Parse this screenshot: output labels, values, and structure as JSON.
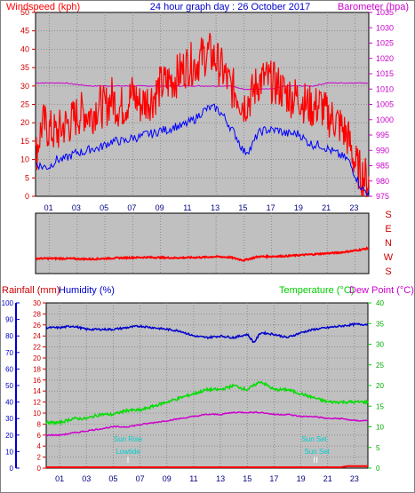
{
  "header": {
    "title": "24 hour graph day : 26 October 2017",
    "left_label": "Windspeed (kph)",
    "right_label": "Barometer (hpa)"
  },
  "colors": {
    "panel_bg": "#c0c0c0",
    "wind": "#ff0000",
    "gust": "#0000ff",
    "barometer": "#cc00cc",
    "direction": "#ff0000",
    "rain": "#ff0000",
    "humidity": "#0000cc",
    "temperature": "#00dd00",
    "dewpoint": "#cc00cc",
    "sun": "#00cccc"
  },
  "chart_data": [
    {
      "type": "line",
      "title": "24 hour graph day : 26 October 2017",
      "x_tick_labels": [
        "01",
        "03",
        "05",
        "07",
        "09",
        "11",
        "13",
        "15",
        "17",
        "19",
        "21",
        "23"
      ],
      "xlim": [
        0,
        24
      ],
      "y_left": {
        "label": "Windspeed (kph)",
        "lim": [
          0,
          50
        ],
        "ticks": [
          0,
          5,
          10,
          15,
          20,
          25,
          30,
          35,
          40,
          45,
          50
        ]
      },
      "y_right": {
        "label": "Barometer (hpa)",
        "lim": [
          975,
          1035
        ],
        "ticks": [
          975,
          980,
          985,
          990,
          995,
          1000,
          1005,
          1010,
          1015,
          1020,
          1025,
          1030,
          1035
        ]
      },
      "series": [
        {
          "name": "Windspeed (kph)",
          "axis": "left",
          "x": [
            0,
            0.5,
            1,
            1.5,
            2,
            2.5,
            3,
            3.5,
            4,
            4.5,
            5,
            5.5,
            6,
            6.5,
            7,
            7.5,
            8,
            8.5,
            9,
            9.5,
            10,
            10.5,
            11,
            11.5,
            12,
            12.5,
            13,
            13.5,
            14,
            14.5,
            15,
            15.5,
            16,
            16.5,
            17,
            17.5,
            18,
            18.5,
            19,
            19.5,
            20,
            20.5,
            21,
            21.5,
            22,
            22.5,
            23,
            23.5,
            24
          ],
          "values": [
            11,
            20,
            18,
            17,
            19,
            20,
            22,
            23,
            22,
            25,
            24,
            27,
            24,
            25,
            28,
            25,
            26,
            27,
            30,
            31,
            32,
            34,
            36,
            36,
            38,
            39,
            37,
            34,
            30,
            28,
            25,
            27,
            31,
            32,
            31,
            30,
            28,
            27,
            27,
            25,
            24,
            25,
            22,
            21,
            19,
            16,
            9,
            6,
            4
          ]
        },
        {
          "name": "Gust",
          "axis": "left",
          "x": [
            0,
            0.5,
            1,
            1.5,
            2,
            2.5,
            3,
            3.5,
            4,
            4.5,
            5,
            5.5,
            6,
            6.5,
            7,
            7.5,
            8,
            8.5,
            9,
            9.5,
            10,
            10.5,
            11,
            11.5,
            12,
            12.5,
            13,
            13.5,
            14,
            14.5,
            15,
            15.5,
            16,
            16.5,
            17,
            17.5,
            18,
            18.5,
            19,
            19.5,
            20,
            20.5,
            21,
            21.5,
            22,
            22.5,
            23,
            23.5,
            24
          ],
          "values": [
            9,
            8,
            8,
            10,
            10,
            11,
            12,
            12,
            13,
            13,
            14,
            15,
            15,
            15,
            16,
            16,
            17,
            17,
            18,
            18,
            19,
            19,
            20,
            21,
            23,
            24,
            24,
            22,
            19,
            16,
            12,
            13,
            17,
            18,
            18,
            18,
            17,
            17,
            17,
            15,
            14,
            14,
            13,
            12,
            11,
            10,
            6,
            2,
            1
          ]
        },
        {
          "name": "Barometer (hpa)",
          "axis": "right",
          "x": [
            0,
            2,
            4,
            6,
            8,
            10,
            12,
            13,
            14,
            15,
            16,
            17,
            18,
            19,
            20,
            21,
            22,
            23,
            24
          ],
          "values": [
            1012,
            1012,
            1011,
            1011,
            1011,
            1011,
            1011,
            1011,
            1011,
            1010,
            1010,
            1010,
            1011,
            1011,
            1011,
            1012,
            1012,
            1012,
            1012
          ]
        }
      ]
    },
    {
      "type": "line",
      "title": "",
      "xlim": [
        0,
        24
      ],
      "y_labels": [
        "S",
        "E",
        "N",
        "W",
        "S"
      ],
      "series": [
        {
          "name": "Wind direction",
          "x": [
            0,
            2,
            4,
            6,
            8,
            10,
            12,
            13,
            14,
            15,
            16,
            18,
            20,
            22,
            23,
            24
          ],
          "values": [
            0.25,
            0.25,
            0.24,
            0.26,
            0.27,
            0.26,
            0.27,
            0.28,
            0.27,
            0.22,
            0.28,
            0.29,
            0.32,
            0.35,
            0.38,
            0.42
          ]
        }
      ]
    },
    {
      "type": "line",
      "title": "",
      "legend": [
        "Rainfall (mm)",
        "Humidity (%)",
        "Temperature (°C)",
        "Dew Point (°C)"
      ],
      "x_tick_labels": [
        "01",
        "03",
        "05",
        "07",
        "09",
        "11",
        "13",
        "15",
        "17",
        "19",
        "21",
        "23"
      ],
      "xlim": [
        0,
        24
      ],
      "y_humidity": {
        "label": "Humidity (%)",
        "lim": [
          0,
          100
        ],
        "ticks": [
          0,
          10,
          20,
          30,
          40,
          50,
          60,
          70,
          80,
          90,
          100
        ]
      },
      "y_rain": {
        "label": "Rainfall (mm)",
        "lim": [
          0,
          30
        ],
        "ticks": [
          0,
          2,
          4,
          6,
          8,
          10,
          12,
          14,
          16,
          18,
          20,
          22,
          24,
          26,
          28,
          30
        ]
      },
      "y_temp": {
        "label": "Temperature (°C)",
        "lim": [
          0,
          40
        ],
        "ticks": [
          0,
          5,
          10,
          15,
          20,
          25,
          30,
          35,
          40
        ]
      },
      "annotations": [
        {
          "text": "Sun Rise",
          "x": 6.1
        },
        {
          "text": "Lowtide",
          "x": 6.1
        },
        {
          "text": "Sun Set",
          "x": 20.0
        },
        {
          "text": "Sun Set",
          "x": 20.2
        }
      ],
      "series": [
        {
          "name": "Humidity (%)",
          "axis": "humidity",
          "x": [
            0,
            1,
            2,
            3,
            4,
            5,
            6,
            7,
            8,
            9,
            10,
            11,
            12,
            13,
            14,
            15,
            15.5,
            16,
            17,
            18,
            19,
            20,
            21,
            22,
            23,
            24
          ],
          "values": [
            85,
            85,
            86,
            84,
            84,
            84,
            85,
            86,
            85,
            84,
            83,
            80,
            79,
            80,
            79,
            81,
            76,
            82,
            81,
            79,
            82,
            84,
            85,
            86,
            87,
            87
          ]
        },
        {
          "name": "Temperature (°C)",
          "axis": "temp",
          "x": [
            0,
            1,
            2,
            3,
            4,
            5,
            6,
            7,
            8,
            9,
            10,
            11,
            12,
            13,
            14,
            15,
            16,
            17,
            18,
            19,
            20,
            21,
            22,
            23,
            24
          ],
          "values": [
            11,
            11,
            12,
            12,
            13,
            13,
            14,
            14,
            15,
            16,
            17,
            18,
            19,
            19,
            20,
            19,
            21,
            19,
            19,
            18,
            17,
            16,
            16,
            16,
            16
          ]
        },
        {
          "name": "Dew Point (°C)",
          "axis": "temp",
          "x": [
            0,
            1,
            2,
            3,
            4,
            5,
            6,
            7,
            8,
            9,
            10,
            11,
            12,
            13,
            14,
            15,
            16,
            17,
            18,
            19,
            20,
            21,
            22,
            23,
            24
          ],
          "values": [
            8,
            8,
            8.5,
            9,
            9.5,
            10,
            10,
            10.5,
            11,
            11.5,
            12,
            12.5,
            13,
            13,
            13.5,
            13.5,
            13.5,
            13,
            13,
            12.5,
            12.5,
            12,
            12,
            11.5,
            11.5
          ]
        },
        {
          "name": "Rainfall (mm)",
          "axis": "rain",
          "x": [
            0,
            22,
            22.5,
            24
          ],
          "values": [
            0,
            0,
            0.2,
            0.2
          ]
        }
      ]
    }
  ]
}
